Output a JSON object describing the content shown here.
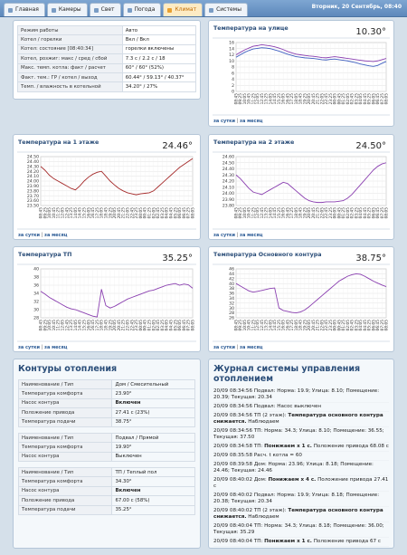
{
  "tabs": {
    "items": [
      "Главная",
      "Камеры",
      "Свет",
      "Погода",
      "Климат",
      "Системы"
    ],
    "active": 4
  },
  "header": {
    "date": "Вторник, 20 Сентябрь, 08:40"
  },
  "status": {
    "rows": [
      [
        "Режим работы",
        "Авто"
      ],
      [
        "Котел / горелки",
        "Вкл / Вкл"
      ],
      [
        "Котел: состояние [08:40:34]",
        "горелки включены"
      ],
      [
        "Котел, розжиг: макс / сред / сбой",
        "7.3 с / 2.2 с / 18"
      ],
      [
        "Макс. темп. котла: факт / расчет",
        "60° / 60° (52%)"
      ],
      [
        "Факт. тем.: ГР / котел / выход",
        "60.44° / 59.13° / 40.37°"
      ],
      [
        "Темп. / влажность в котельной",
        "34.20° / 27%"
      ]
    ]
  },
  "chart_data": [
    {
      "type": "line",
      "title": "Температура на улице",
      "current": "10.30°",
      "links": [
        "за сутки",
        "за месяц"
      ],
      "categories": [
        "08:45",
        "09:25",
        "10:05",
        "10:45",
        "11:25",
        "12:05",
        "12:45",
        "13:25",
        "14:05",
        "14:45",
        "15:25",
        "16:05",
        "16:45",
        "17:25",
        "18:05",
        "18:45",
        "19:25",
        "20:05",
        "20:45",
        "21:25",
        "22:05",
        "22:45",
        "23:25",
        "00:05",
        "00:45",
        "01:25",
        "02:05",
        "02:45",
        "03:25",
        "04:05",
        "04:45",
        "05:25",
        "06:05",
        "06:45",
        "07:25",
        "08:05"
      ],
      "ylim": [
        0,
        16
      ],
      "yticks": [
        0,
        2,
        4,
        6,
        8,
        10,
        12,
        14,
        16
      ],
      "grid": true,
      "series": [
        {
          "color": "#8a3fb0",
          "values": [
            12.0,
            12.8,
            13.6,
            14.2,
            14.8,
            15.0,
            15.3,
            15.1,
            14.9,
            14.6,
            14.2,
            13.7,
            13.1,
            12.6,
            12.2,
            12.0,
            11.8,
            11.6,
            11.5,
            11.3,
            11.1,
            11.0,
            11.2,
            11.4,
            11.2,
            11.0,
            10.8,
            10.6,
            10.4,
            10.2,
            10.0,
            9.9,
            9.8,
            10.0,
            10.4,
            10.8
          ]
        },
        {
          "color": "#3f5fc0",
          "values": [
            11.2,
            12.0,
            12.8,
            13.4,
            13.9,
            14.1,
            14.3,
            14.2,
            14.0,
            13.6,
            13.2,
            12.7,
            12.2,
            11.8,
            11.4,
            11.2,
            11.0,
            10.9,
            10.8,
            10.6,
            10.4,
            10.3,
            10.5,
            10.6,
            10.4,
            10.2,
            10.0,
            9.7,
            9.4,
            9.0,
            8.7,
            8.4,
            8.2,
            8.5,
            9.2,
            9.8
          ]
        }
      ]
    },
    {
      "type": "line",
      "title": "Температура на 1 этаже",
      "current": "24.46°",
      "links": [
        "за сутки",
        "за месяц"
      ],
      "categories": [
        "08:45",
        "09:25",
        "10:05",
        "10:45",
        "11:25",
        "12:05",
        "12:45",
        "13:25",
        "14:05",
        "14:45",
        "15:25",
        "16:05",
        "16:45",
        "17:25",
        "18:05",
        "18:45",
        "19:25",
        "20:05",
        "20:45",
        "21:25",
        "22:05",
        "22:45",
        "23:25",
        "00:05",
        "00:45",
        "01:25",
        "02:05",
        "02:45",
        "03:25",
        "04:05",
        "04:45",
        "05:25",
        "06:05",
        "06:45",
        "07:25",
        "08:05"
      ],
      "ylim": [
        23.5,
        24.5
      ],
      "yticks": [
        {
          "value": 23.5,
          "label": "23.50"
        },
        {
          "value": 23.6,
          "label": "23.60"
        },
        {
          "value": 23.7,
          "label": "23.70"
        },
        {
          "value": 23.8,
          "label": "23.80"
        },
        {
          "value": 23.9,
          "label": "23.90"
        },
        {
          "value": 24.0,
          "label": "24.00"
        },
        {
          "value": 24.1,
          "label": "24.10"
        },
        {
          "value": 24.2,
          "label": "24.20"
        },
        {
          "value": 24.3,
          "label": "24.30"
        },
        {
          "value": 24.4,
          "label": "24.40"
        },
        {
          "value": 24.5,
          "label": "24.50"
        }
      ],
      "grid": true,
      "series": [
        {
          "color": "#a52a2a",
          "values": [
            24.3,
            24.22,
            24.12,
            24.05,
            24.0,
            23.95,
            23.9,
            23.85,
            23.82,
            23.9,
            24.0,
            24.08,
            24.14,
            24.18,
            24.2,
            24.1,
            24.0,
            23.92,
            23.85,
            23.8,
            23.76,
            23.74,
            23.72,
            23.74,
            23.75,
            23.76,
            23.8,
            23.88,
            23.96,
            24.04,
            24.12,
            24.2,
            24.28,
            24.34,
            24.4,
            24.46
          ]
        }
      ]
    },
    {
      "type": "line",
      "title": "Температура на 2 этаже",
      "current": "24.50°",
      "links": [
        "за сутки",
        "за месяц"
      ],
      "categories": [
        "08:45",
        "09:25",
        "10:05",
        "10:45",
        "11:25",
        "12:05",
        "12:45",
        "13:25",
        "14:05",
        "14:45",
        "15:25",
        "16:05",
        "16:45",
        "17:25",
        "18:05",
        "18:45",
        "19:25",
        "20:05",
        "20:45",
        "21:25",
        "22:05",
        "22:45",
        "23:25",
        "00:05",
        "00:45",
        "01:25",
        "02:05",
        "02:45",
        "03:25",
        "04:05",
        "04:45",
        "05:25",
        "06:05",
        "06:45",
        "07:25",
        "08:05"
      ],
      "ylim": [
        23.8,
        24.6
      ],
      "yticks": [
        {
          "value": 23.8,
          "label": "23.80"
        },
        {
          "value": 23.9,
          "label": "23.90"
        },
        {
          "value": 24.0,
          "label": "24.00"
        },
        {
          "value": 24.1,
          "label": "24.10"
        },
        {
          "value": 24.2,
          "label": "24.20"
        },
        {
          "value": 24.3,
          "label": "24.30"
        },
        {
          "value": 24.4,
          "label": "24.40"
        },
        {
          "value": 24.5,
          "label": "24.50"
        },
        {
          "value": 24.6,
          "label": "24.60"
        }
      ],
      "grid": true,
      "series": [
        {
          "color": "#8a3fb0",
          "values": [
            24.3,
            24.24,
            24.16,
            24.08,
            24.02,
            24.0,
            23.98,
            24.02,
            24.06,
            24.1,
            24.14,
            24.18,
            24.16,
            24.1,
            24.04,
            23.98,
            23.92,
            23.88,
            23.86,
            23.85,
            23.85,
            23.86,
            23.86,
            23.86,
            23.87,
            23.88,
            23.92,
            23.98,
            24.06,
            24.14,
            24.22,
            24.3,
            24.38,
            24.44,
            24.48,
            24.5
          ]
        }
      ]
    },
    {
      "type": "line",
      "title": "Температура ТП",
      "current": "35.25°",
      "links": [
        "за сутки",
        "за месяц"
      ],
      "categories": [
        "08:45",
        "09:25",
        "10:05",
        "10:45",
        "11:25",
        "12:05",
        "12:45",
        "13:25",
        "14:05",
        "14:45",
        "15:25",
        "16:05",
        "16:45",
        "17:25",
        "18:05",
        "18:45",
        "19:25",
        "20:05",
        "20:45",
        "21:25",
        "22:05",
        "22:45",
        "23:25",
        "00:05",
        "00:45",
        "01:25",
        "02:05",
        "02:45",
        "03:25",
        "04:05",
        "04:45",
        "05:25",
        "06:05",
        "06:45",
        "07:25",
        "08:05"
      ],
      "ylim": [
        28,
        40
      ],
      "yticks": [
        28,
        30,
        32,
        34,
        36,
        38,
        40
      ],
      "grid": true,
      "series": [
        {
          "color": "#8a3fb0",
          "values": [
            34.5,
            33.8,
            33.0,
            32.4,
            31.8,
            31.2,
            30.6,
            30.2,
            30.0,
            29.6,
            29.2,
            28.8,
            28.4,
            28.2,
            35.0,
            31.0,
            30.4,
            30.8,
            31.4,
            32.0,
            32.6,
            33.0,
            33.4,
            33.8,
            34.2,
            34.6,
            34.8,
            35.2,
            35.6,
            36.0,
            36.2,
            36.4,
            36.0,
            36.3,
            36.1,
            35.25
          ]
        }
      ]
    },
    {
      "type": "line",
      "title": "Температура Основного контура",
      "current": "38.75°",
      "links": [
        "за сутки",
        "за месяц"
      ],
      "categories": [
        "08:45",
        "09:25",
        "10:05",
        "10:45",
        "11:25",
        "12:05",
        "12:45",
        "13:25",
        "14:05",
        "14:45",
        "15:25",
        "16:05",
        "16:45",
        "17:25",
        "18:05",
        "18:45",
        "19:25",
        "20:05",
        "20:45",
        "21:25",
        "22:05",
        "22:45",
        "23:25",
        "00:05",
        "00:45",
        "01:25",
        "02:05",
        "02:45",
        "03:25",
        "04:05",
        "04:45",
        "05:25",
        "06:05",
        "06:45",
        "07:25",
        "08:05"
      ],
      "ylim": [
        26,
        46
      ],
      "yticks": [
        26,
        28,
        30,
        32,
        34,
        36,
        38,
        40,
        42,
        44,
        46
      ],
      "grid": true,
      "series": [
        {
          "color": "#8a3fb0",
          "values": [
            40.0,
            39.0,
            38.0,
            37.0,
            36.5,
            36.8,
            37.2,
            37.6,
            38.0,
            38.2,
            30.0,
            29.0,
            28.6,
            28.2,
            28.0,
            28.4,
            29.2,
            30.5,
            32.0,
            33.5,
            35.0,
            36.5,
            38.0,
            39.5,
            41.0,
            42.0,
            43.0,
            43.6,
            44.0,
            43.8,
            43.0,
            42.0,
            41.0,
            40.2,
            39.4,
            38.75
          ]
        }
      ]
    }
  ],
  "circuits": {
    "title": "Контуры отопления",
    "groups": [
      {
        "rows": [
          {
            "label": "Наименование / Тип",
            "value": "Дом / Смесительный"
          },
          {
            "label": "Температура комфорта",
            "value": "23.90°"
          },
          {
            "label": "Насос контура",
            "value": "Включен",
            "bold": true
          },
          {
            "label": "Положение привода",
            "value": "27.41 с (23%)"
          },
          {
            "label": "Температура подачи",
            "value": "38.75°"
          }
        ]
      },
      {
        "rows": [
          {
            "label": "Наименование / Тип",
            "value": "Подвал / Прямой"
          },
          {
            "label": "Температура комфорта",
            "value": "19.90°"
          },
          {
            "label": "Насос контура",
            "value": "Выключен"
          }
        ]
      },
      {
        "rows": [
          {
            "label": "Наименование / Тип",
            "value": "ТП / Теплый пол"
          },
          {
            "label": "Температура комфорта",
            "value": "34.30°"
          },
          {
            "label": "Насос контура",
            "value": "Включен",
            "bold": true
          },
          {
            "label": "Положение привода",
            "value": "67.00 с (58%)"
          },
          {
            "label": "Температура подачи",
            "value": "35.25°"
          }
        ]
      }
    ]
  },
  "journal": {
    "title": "Журнал системы управления отоплением",
    "entries": [
      {
        "time": "20/09 08:34:56",
        "parts": [
          {
            "text": "Подвал: Норма: 19.9; Улица: 8.10; Помещение: 20.39; Текущая: 20.34"
          }
        ]
      },
      {
        "time": "20/09 08:34:56",
        "parts": [
          {
            "text": "Подвал: Насос выключен"
          }
        ]
      },
      {
        "time": "20/09 08:34:56",
        "parts": [
          {
            "text": "ТП (2 этаж): "
          },
          {
            "text": "Температура основного контура снижается.",
            "bold": true
          },
          {
            "text": " Наблюдаем"
          }
        ]
      },
      {
        "time": "20/09 08:34:56",
        "parts": [
          {
            "text": "ТП: Норма: 34.3; Улица: 8.10; Помещение: 36.55; Текущая: 37.50"
          }
        ]
      },
      {
        "time": "20/09 08:34:58",
        "parts": [
          {
            "text": "ТП: "
          },
          {
            "text": "Понижаем х 1 с.",
            "bold": true
          },
          {
            "text": " Положение привода 68.08 с"
          }
        ]
      },
      {
        "time": "20/09 08:35:58",
        "parts": [
          {
            "text": "Расч. t котла = 60"
          }
        ]
      },
      {
        "time": "20/09 08:39:58",
        "parts": [
          {
            "text": "Дом: Норма: 23.96; Улица: 8.18; Помещение: 24.46; Текущая: 24.46"
          }
        ]
      },
      {
        "time": "20/09 08:40:02",
        "parts": [
          {
            "text": "Дом: "
          },
          {
            "text": "Понижаем х 4 с.",
            "bold": true
          },
          {
            "text": " Положение привода 27.41 с"
          }
        ]
      },
      {
        "time": "20/09 08:40:02",
        "parts": [
          {
            "text": "Подвал: Норма: 19.9; Улица: 8.18; Помещение: 20.38; Текущая: 20.34"
          }
        ]
      },
      {
        "time": "20/09 08:40:02",
        "parts": [
          {
            "text": "ТП (2 этаж): "
          },
          {
            "text": "Температура основного контура снижается.",
            "bold": true
          },
          {
            "text": " Наблюдаем"
          }
        ]
      },
      {
        "time": "20/09 08:40:04",
        "parts": [
          {
            "text": "ТП: Норма: 34.3; Улица: 8.18; Помещение: 36.00; Текущая: 35.29"
          }
        ]
      },
      {
        "time": "20/09 08:40:04",
        "parts": [
          {
            "text": "ТП: "
          },
          {
            "text": "Понижаем х 1 с.",
            "bold": true
          },
          {
            "text": " Положение привода 67 с"
          }
        ]
      }
    ]
  }
}
